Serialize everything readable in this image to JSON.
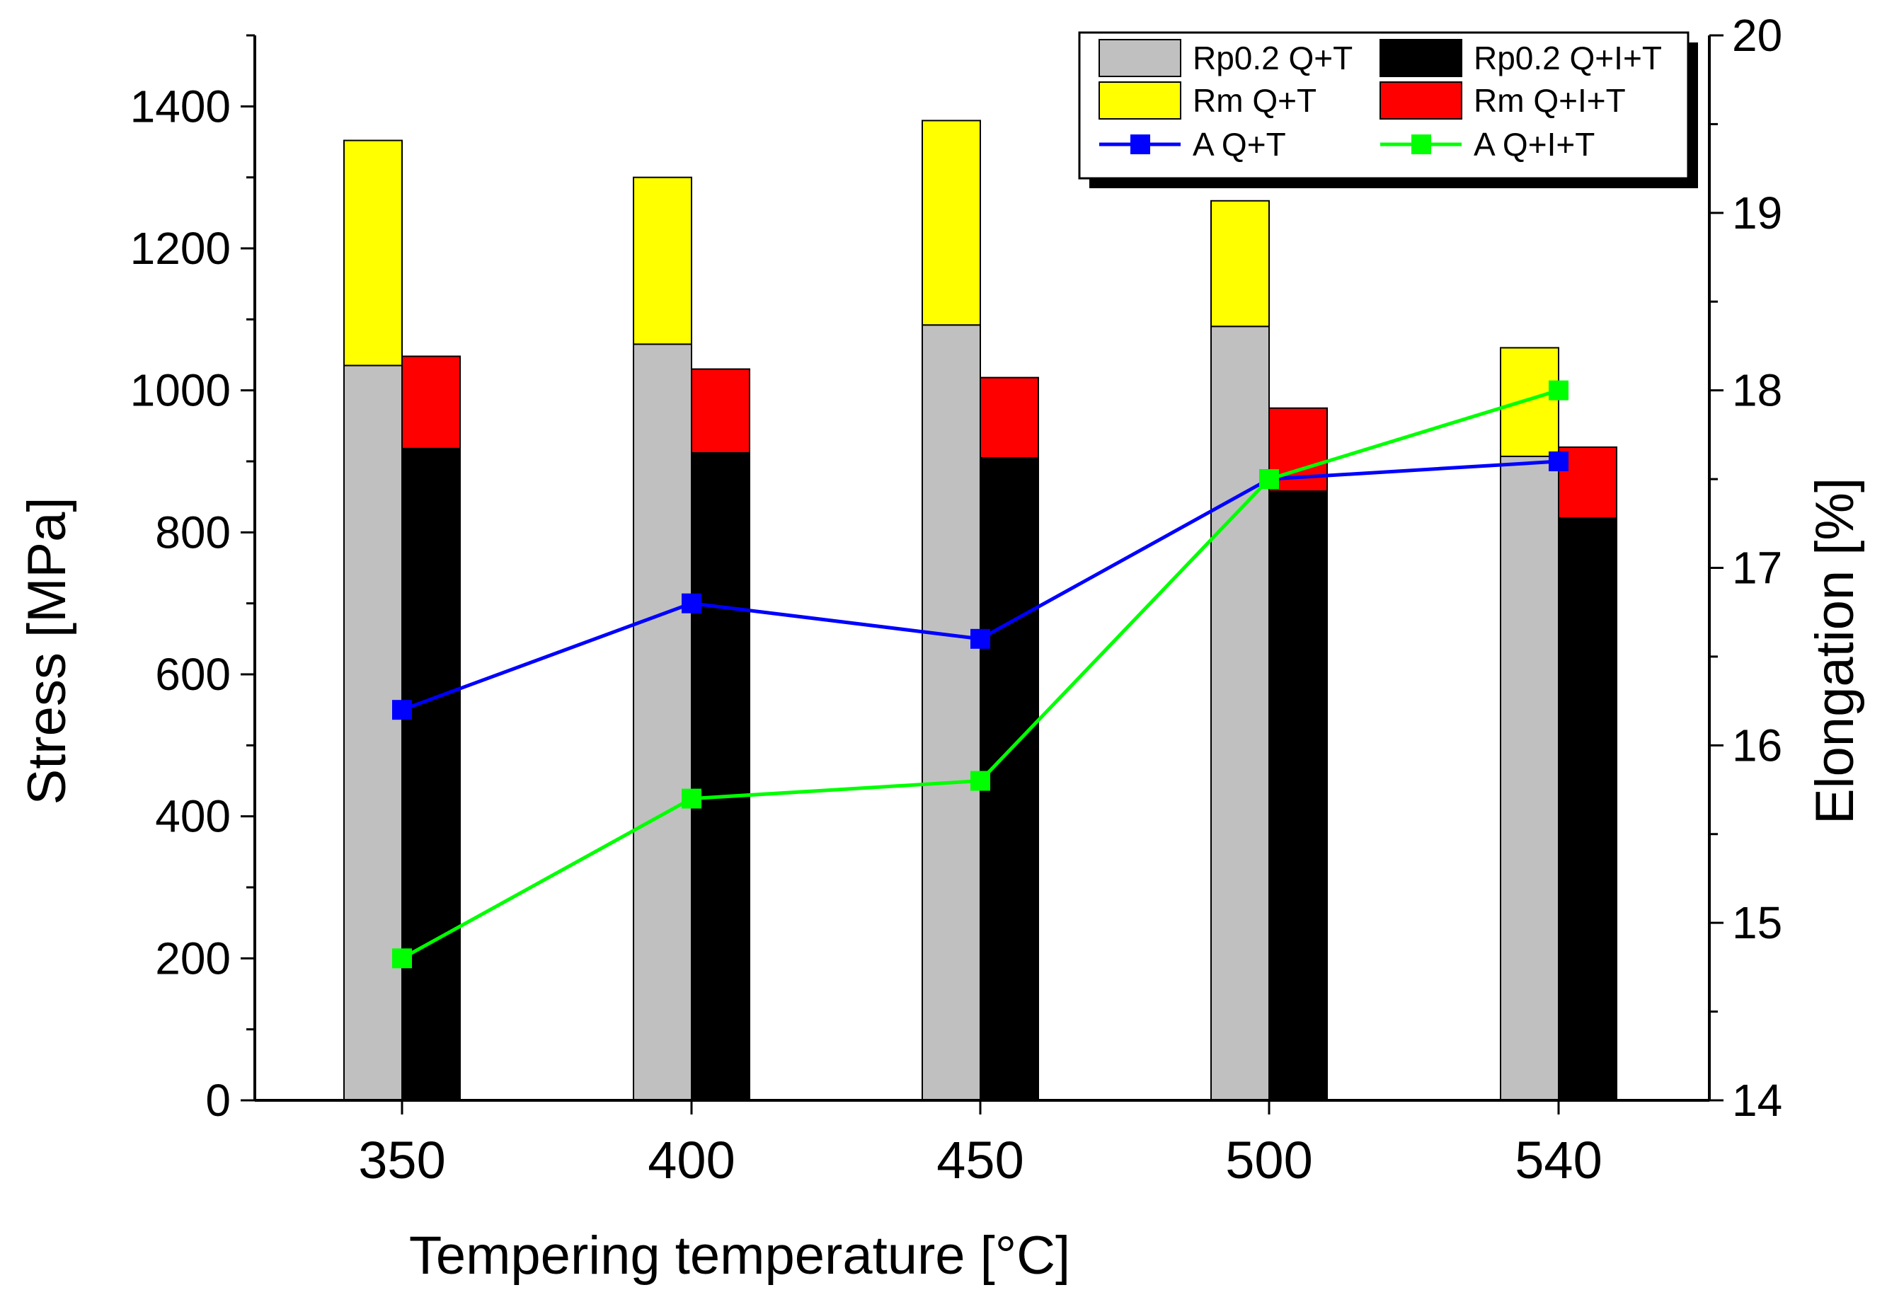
{
  "chart_data": {
    "type": "bar",
    "xlabel": "Tempering temperature [°C]",
    "ylabel": "Stress [MPa]",
    "y2label": "Elongation [%]",
    "categories": [
      "350",
      "400",
      "450",
      "500",
      "540"
    ],
    "ylim": [
      0,
      1500
    ],
    "yticks": [
      0,
      200,
      400,
      600,
      800,
      1000,
      1200,
      1400
    ],
    "y2lim": [
      14,
      20
    ],
    "y2ticks": [
      14,
      15,
      16,
      17,
      18,
      19,
      20
    ],
    "grid": false,
    "legend_position": "top-right",
    "bar_groups": [
      {
        "name": "Q+T",
        "layers": [
          {
            "name": "Rp0.2 Q+T",
            "color": "#c0c0c0",
            "values": [
              1035,
              1065,
              1092,
              1090,
              907
            ]
          },
          {
            "name": "Rm Q+T",
            "color": "#ffff00",
            "values": [
              1352,
              1300,
              1380,
              1267,
              1060
            ]
          }
        ]
      },
      {
        "name": "Q+I+T",
        "layers": [
          {
            "name": "Rp0.2 Q+I+T",
            "color": "#000000",
            "values": [
              918,
              912,
              905,
              858,
              820
            ]
          },
          {
            "name": "Rm Q+I+T",
            "color": "#ff0000",
            "values": [
              1048,
              1030,
              1018,
              975,
              920
            ]
          }
        ]
      }
    ],
    "line_series": [
      {
        "name": "A Q+T",
        "color": "#0000ff",
        "axis": "right",
        "values": [
          16.2,
          16.8,
          16.6,
          17.5,
          17.6
        ]
      },
      {
        "name": "A Q+I+T",
        "color": "#00ff00",
        "axis": "right",
        "values": [
          14.8,
          15.7,
          15.8,
          17.5,
          18.0
        ]
      }
    ]
  }
}
